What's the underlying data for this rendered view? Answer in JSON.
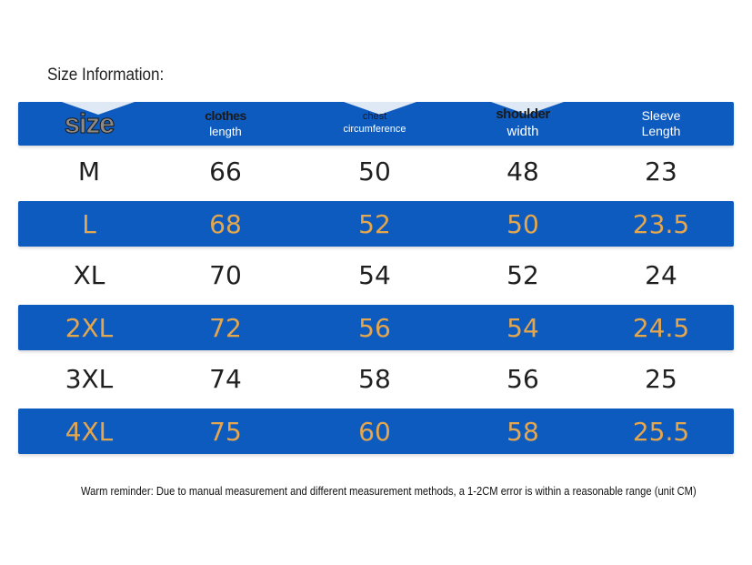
{
  "title": "Size Information:",
  "headers": {
    "size": "size",
    "clothes_length_1": "clothes",
    "clothes_length_2": "length",
    "chest_1": "chest",
    "chest_2": "circumference",
    "shoulder_1": "shoulder",
    "shoulder_2": "width",
    "sleeve_1": "Sleeve",
    "sleeve_2": "Length"
  },
  "rows": [
    {
      "size": "M",
      "clothes_length": "66",
      "chest": "50",
      "shoulder": "48",
      "sleeve": "23"
    },
    {
      "size": "L",
      "clothes_length": "68",
      "chest": "52",
      "shoulder": "50",
      "sleeve": "23.5"
    },
    {
      "size": "XL",
      "clothes_length": "70",
      "chest": "54",
      "shoulder": "52",
      "sleeve": "24"
    },
    {
      "size": "2XL",
      "clothes_length": "72",
      "chest": "56",
      "shoulder": "54",
      "sleeve": "24.5"
    },
    {
      "size": "3XL",
      "clothes_length": "74",
      "chest": "58",
      "shoulder": "56",
      "sleeve": "25"
    },
    {
      "size": "4XL",
      "clothes_length": "75",
      "chest": "60",
      "shoulder": "58",
      "sleeve": "25.5"
    }
  ],
  "reminder": "Warm reminder: Due to manual measurement and different measurement methods, a 1-2CM error is within a reasonable range (unit CM)",
  "colors": {
    "band": "#0e5bc0",
    "highlight_text": "#e4a74d"
  }
}
